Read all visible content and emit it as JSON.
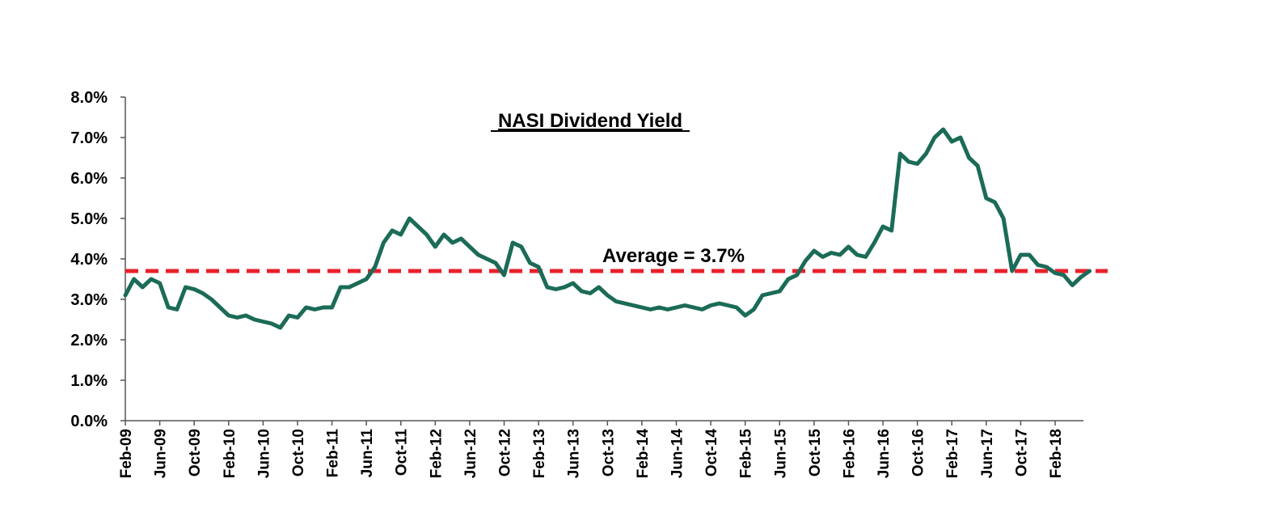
{
  "chart_data": {
    "type": "line",
    "title": "NASI Dividend Yield",
    "xlabel": "",
    "ylabel": "",
    "ylim": [
      0,
      8
    ],
    "y_ticks": [
      "0.0%",
      "1.0%",
      "2.0%",
      "3.0%",
      "4.0%",
      "5.0%",
      "6.0%",
      "7.0%",
      "8.0%"
    ],
    "x_tick_labels": [
      "Feb-09",
      "Jun-09",
      "Oct-09",
      "Feb-10",
      "Jun-10",
      "Oct-10",
      "Feb-11",
      "Jun-11",
      "Oct-11",
      "Feb-12",
      "Jun-12",
      "Oct-12",
      "Feb-13",
      "Jun-13",
      "Oct-13",
      "Feb-14",
      "Jun-14",
      "Oct-14",
      "Feb-15",
      "Jun-15",
      "Oct-15",
      "Feb-16",
      "Jun-16",
      "Oct-16",
      "Feb-17",
      "Jun-17",
      "Oct-17",
      "Feb-18"
    ],
    "x_range": [
      "2009-02",
      "2018-06"
    ],
    "grid": false,
    "series": [
      {
        "color": "#1b6b57",
        "points": [
          [
            "2009-02",
            3.1
          ],
          [
            "2009-03",
            3.5
          ],
          [
            "2009-04",
            3.3
          ],
          [
            "2009-05",
            3.5
          ],
          [
            "2009-06",
            3.4
          ],
          [
            "2009-07",
            2.8
          ],
          [
            "2009-08",
            2.75
          ],
          [
            "2009-09",
            3.3
          ],
          [
            "2009-10",
            3.25
          ],
          [
            "2009-11",
            3.15
          ],
          [
            "2009-12",
            3.0
          ],
          [
            "2010-01",
            2.8
          ],
          [
            "2010-02",
            2.6
          ],
          [
            "2010-03",
            2.55
          ],
          [
            "2010-04",
            2.6
          ],
          [
            "2010-05",
            2.5
          ],
          [
            "2010-06",
            2.45
          ],
          [
            "2010-07",
            2.4
          ],
          [
            "2010-08",
            2.3
          ],
          [
            "2010-09",
            2.6
          ],
          [
            "2010-10",
            2.55
          ],
          [
            "2010-11",
            2.8
          ],
          [
            "2010-12",
            2.75
          ],
          [
            "2011-01",
            2.8
          ],
          [
            "2011-02",
            2.8
          ],
          [
            "2011-03",
            3.3
          ],
          [
            "2011-04",
            3.3
          ],
          [
            "2011-05",
            3.4
          ],
          [
            "2011-06",
            3.5
          ],
          [
            "2011-07",
            3.8
          ],
          [
            "2011-08",
            4.4
          ],
          [
            "2011-09",
            4.7
          ],
          [
            "2011-10",
            4.6
          ],
          [
            "2011-11",
            5.0
          ],
          [
            "2011-12",
            4.8
          ],
          [
            "2012-01",
            4.6
          ],
          [
            "2012-02",
            4.3
          ],
          [
            "2012-03",
            4.6
          ],
          [
            "2012-04",
            4.4
          ],
          [
            "2012-05",
            4.5
          ],
          [
            "2012-06",
            4.3
          ],
          [
            "2012-07",
            4.1
          ],
          [
            "2012-08",
            4.0
          ],
          [
            "2012-09",
            3.9
          ],
          [
            "2012-10",
            3.6
          ],
          [
            "2012-11",
            4.4
          ],
          [
            "2012-12",
            4.3
          ],
          [
            "2013-01",
            3.9
          ],
          [
            "2013-02",
            3.8
          ],
          [
            "2013-03",
            3.3
          ],
          [
            "2013-04",
            3.25
          ],
          [
            "2013-05",
            3.3
          ],
          [
            "2013-06",
            3.4
          ],
          [
            "2013-07",
            3.2
          ],
          [
            "2013-08",
            3.15
          ],
          [
            "2013-09",
            3.3
          ],
          [
            "2013-10",
            3.1
          ],
          [
            "2013-11",
            2.95
          ],
          [
            "2013-12",
            2.9
          ],
          [
            "2014-01",
            2.85
          ],
          [
            "2014-02",
            2.8
          ],
          [
            "2014-03",
            2.75
          ],
          [
            "2014-04",
            2.8
          ],
          [
            "2014-05",
            2.75
          ],
          [
            "2014-06",
            2.8
          ],
          [
            "2014-07",
            2.85
          ],
          [
            "2014-08",
            2.8
          ],
          [
            "2014-09",
            2.75
          ],
          [
            "2014-10",
            2.85
          ],
          [
            "2014-11",
            2.9
          ],
          [
            "2014-12",
            2.85
          ],
          [
            "2015-01",
            2.8
          ],
          [
            "2015-02",
            2.6
          ],
          [
            "2015-03",
            2.75
          ],
          [
            "2015-04",
            3.1
          ],
          [
            "2015-05",
            3.15
          ],
          [
            "2015-06",
            3.2
          ],
          [
            "2015-07",
            3.5
          ],
          [
            "2015-08",
            3.6
          ],
          [
            "2015-09",
            3.95
          ],
          [
            "2015-10",
            4.2
          ],
          [
            "2015-11",
            4.05
          ],
          [
            "2015-12",
            4.15
          ],
          [
            "2016-01",
            4.1
          ],
          [
            "2016-02",
            4.3
          ],
          [
            "2016-03",
            4.1
          ],
          [
            "2016-04",
            4.05
          ],
          [
            "2016-05",
            4.4
          ],
          [
            "2016-06",
            4.8
          ],
          [
            "2016-07",
            4.7
          ],
          [
            "2016-08",
            6.6
          ],
          [
            "2016-09",
            6.4
          ],
          [
            "2016-10",
            6.35
          ],
          [
            "2016-11",
            6.6
          ],
          [
            "2016-12",
            7.0
          ],
          [
            "2017-01",
            7.2
          ],
          [
            "2017-02",
            6.9
          ],
          [
            "2017-03",
            7.0
          ],
          [
            "2017-04",
            6.5
          ],
          [
            "2017-05",
            6.3
          ],
          [
            "2017-06",
            5.5
          ],
          [
            "2017-07",
            5.4
          ],
          [
            "2017-08",
            5.0
          ],
          [
            "2017-09",
            3.7
          ],
          [
            "2017-10",
            4.1
          ],
          [
            "2017-11",
            4.1
          ],
          [
            "2017-12",
            3.85
          ],
          [
            "2018-01",
            3.8
          ],
          [
            "2018-02",
            3.65
          ],
          [
            "2018-03",
            3.6
          ],
          [
            "2018-04",
            3.35
          ],
          [
            "2018-05",
            3.55
          ],
          [
            "2018-06",
            3.7
          ]
        ]
      }
    ],
    "average": {
      "value": 3.7,
      "label": "Average = 3.7%",
      "color": "#e8212b",
      "style": "dashed"
    }
  }
}
